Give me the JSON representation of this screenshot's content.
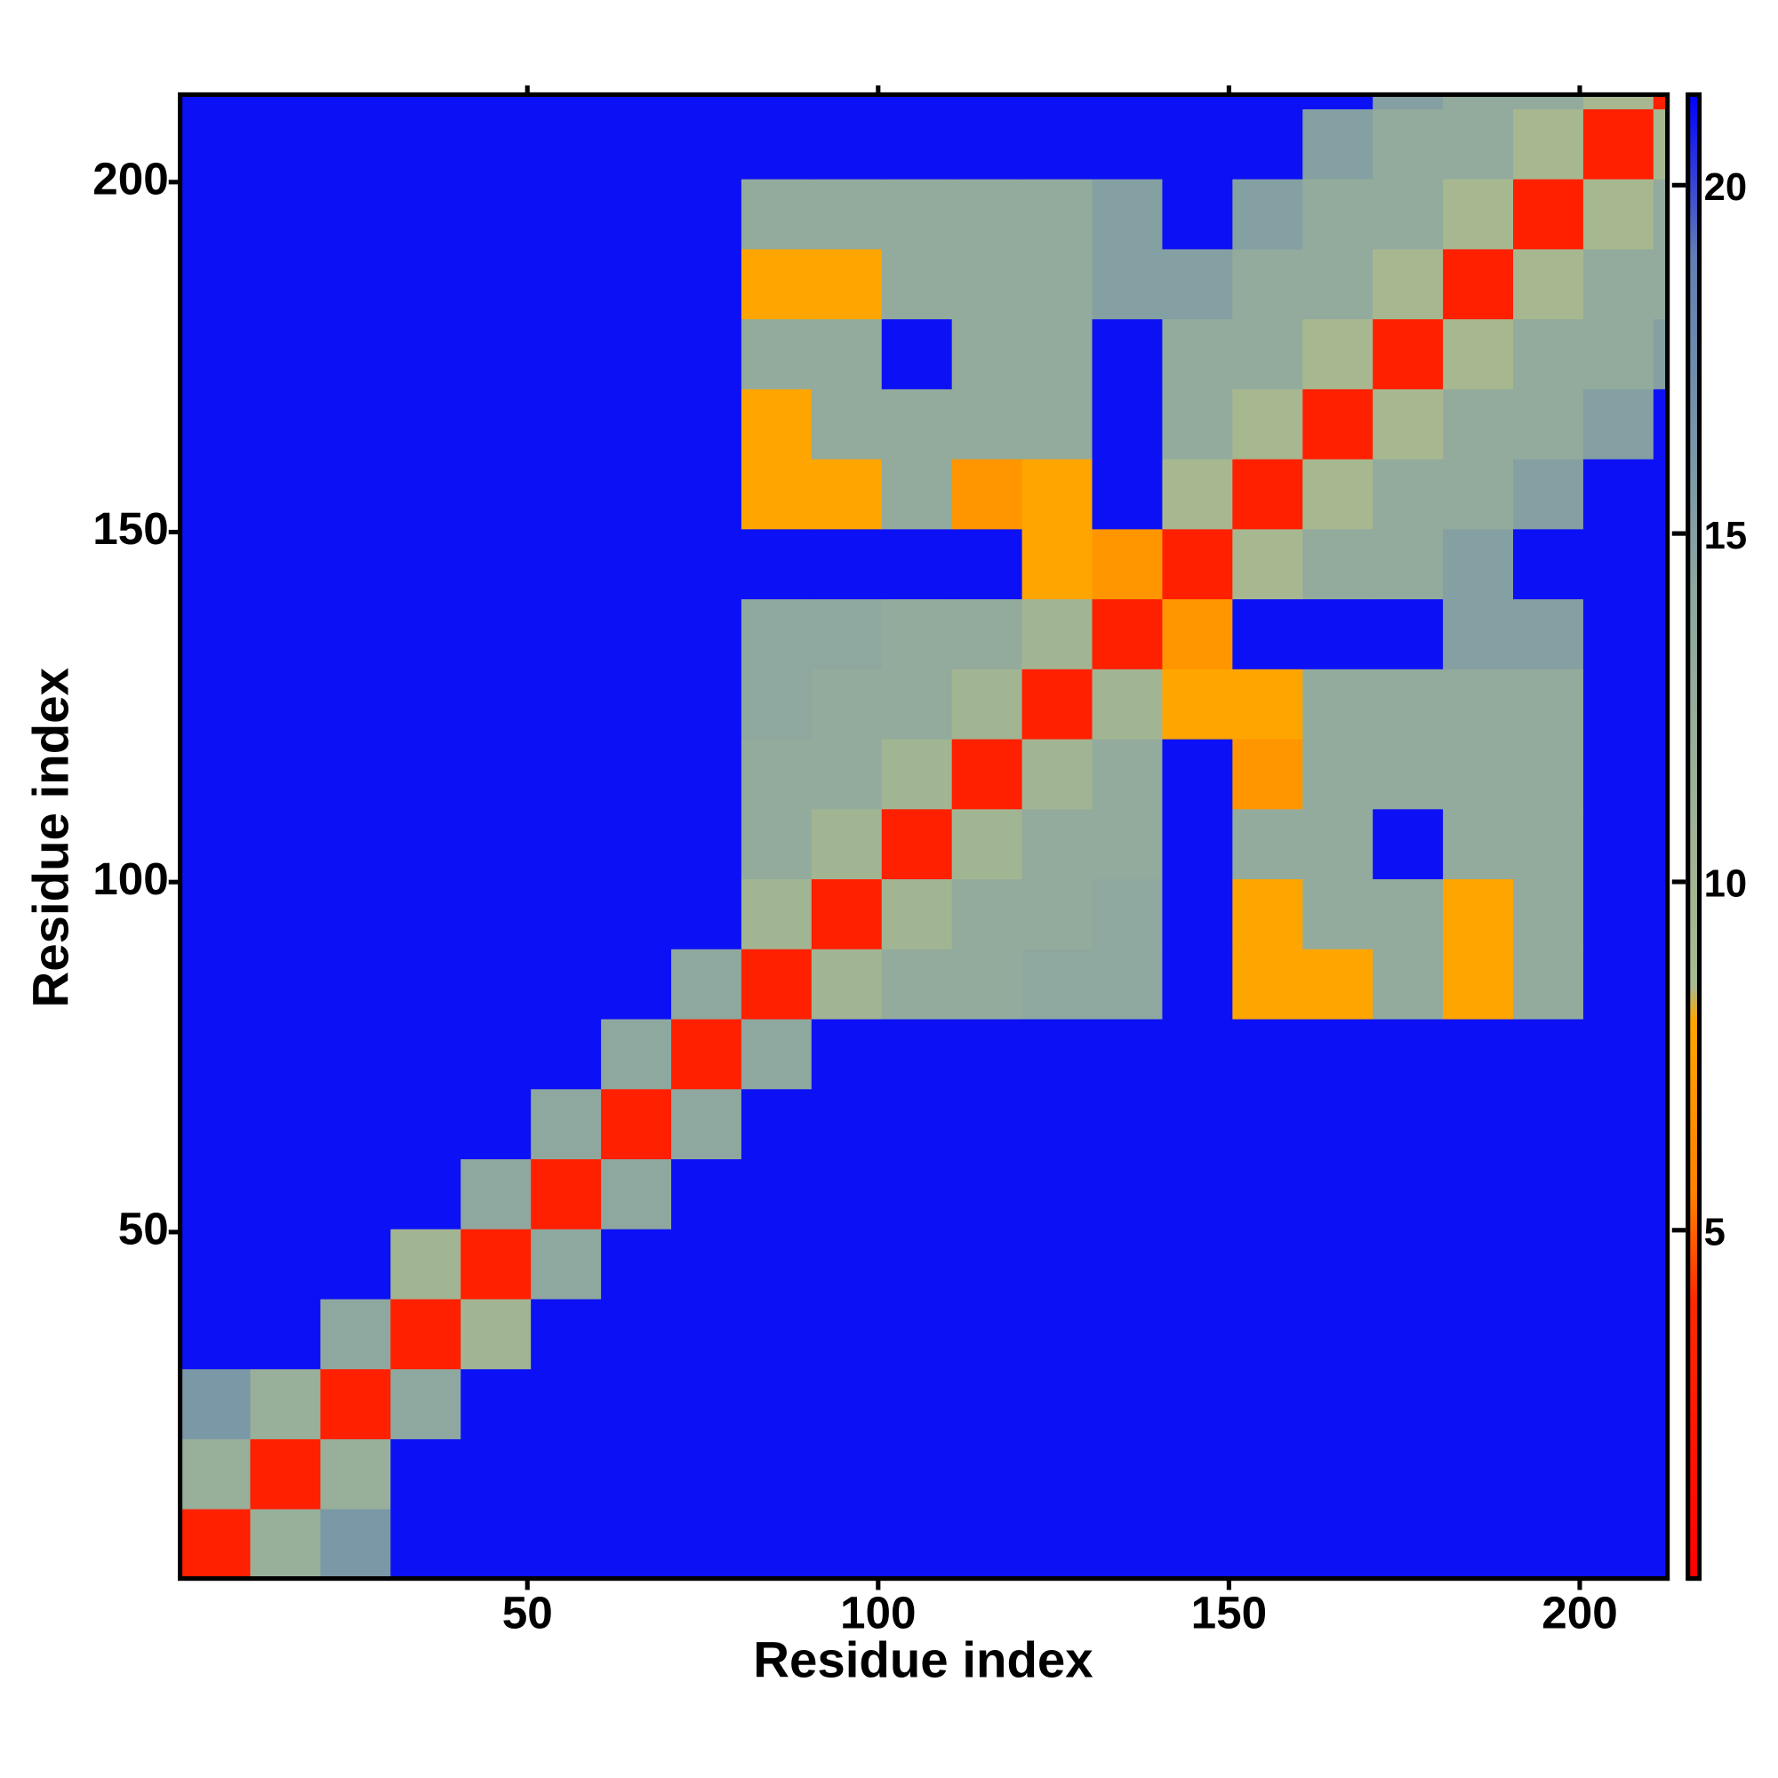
{
  "chart_data": {
    "type": "heatmap",
    "xlabel": "Residue index",
    "ylabel": "Residue index",
    "x_edges": [
      0.5,
      10.5,
      20.5,
      30.5,
      40.5,
      50.5,
      60.5,
      70.5,
      80.5,
      90.5,
      100.5,
      110.5,
      120.5,
      130.5,
      140.5,
      150.5,
      160.5,
      170.5,
      180.5,
      190.5,
      200.5,
      210.5,
      212.5
    ],
    "y_edges": [
      0.5,
      10.5,
      20.5,
      30.5,
      40.5,
      50.5,
      60.5,
      70.5,
      80.5,
      90.5,
      100.5,
      110.5,
      120.5,
      130.5,
      140.5,
      150.5,
      160.5,
      170.5,
      180.5,
      190.5,
      200.5,
      210.5,
      212.5
    ],
    "z": [
      [
        3,
        12,
        16,
        21,
        21,
        21,
        21,
        21,
        21,
        21,
        21,
        21,
        21,
        21,
        21,
        21,
        21,
        21,
        21,
        21,
        21,
        21
      ],
      [
        12,
        3,
        12,
        21,
        21,
        21,
        21,
        21,
        21,
        21,
        21,
        21,
        21,
        21,
        21,
        21,
        21,
        21,
        21,
        21,
        21,
        21
      ],
      [
        16,
        12,
        3,
        14,
        21,
        21,
        21,
        21,
        21,
        21,
        21,
        21,
        21,
        21,
        21,
        21,
        21,
        21,
        21,
        21,
        21,
        21
      ],
      [
        21,
        21,
        14,
        3,
        10,
        21,
        21,
        21,
        21,
        21,
        21,
        21,
        21,
        21,
        21,
        21,
        21,
        21,
        21,
        21,
        21,
        21
      ],
      [
        21,
        21,
        21,
        10,
        3,
        14,
        21,
        21,
        21,
        21,
        21,
        21,
        21,
        21,
        21,
        21,
        21,
        21,
        21,
        21,
        21,
        21
      ],
      [
        21,
        21,
        21,
        21,
        14,
        3,
        14,
        21,
        21,
        21,
        21,
        21,
        21,
        21,
        21,
        21,
        21,
        21,
        21,
        21,
        21,
        21
      ],
      [
        21,
        21,
        21,
        21,
        21,
        14,
        3,
        14,
        21,
        21,
        21,
        21,
        21,
        21,
        21,
        21,
        21,
        21,
        21,
        21,
        21,
        21
      ],
      [
        21,
        21,
        21,
        21,
        21,
        21,
        14,
        3,
        14,
        21,
        21,
        21,
        21,
        21,
        21,
        21,
        21,
        21,
        21,
        21,
        21,
        21
      ],
      [
        21,
        21,
        21,
        21,
        21,
        21,
        21,
        14,
        3,
        10,
        13,
        13,
        14,
        14,
        21,
        8,
        8,
        13,
        8,
        13,
        21,
        21
      ],
      [
        21,
        21,
        21,
        21,
        21,
        21,
        21,
        21,
        10,
        3,
        10,
        13,
        13,
        14,
        21,
        8,
        13,
        13,
        8,
        13,
        21,
        21
      ],
      [
        21,
        21,
        21,
        21,
        21,
        21,
        21,
        21,
        13,
        10,
        3,
        10,
        13,
        13,
        21,
        13,
        13,
        21,
        13,
        13,
        21,
        21
      ],
      [
        21,
        21,
        21,
        21,
        21,
        21,
        21,
        21,
        13,
        13,
        10,
        3,
        10,
        13,
        21,
        7,
        13,
        13,
        13,
        13,
        21,
        21
      ],
      [
        21,
        21,
        21,
        21,
        21,
        21,
        21,
        21,
        14,
        13,
        13,
        10,
        3,
        10,
        8,
        8,
        13,
        13,
        13,
        13,
        21,
        21
      ],
      [
        21,
        21,
        21,
        21,
        21,
        21,
        21,
        21,
        14,
        14,
        13,
        13,
        10,
        3,
        7,
        21,
        21,
        21,
        15,
        15,
        21,
        21
      ],
      [
        21,
        21,
        21,
        21,
        21,
        21,
        21,
        21,
        21,
        21,
        21,
        21,
        8,
        7,
        3,
        9,
        13,
        13,
        15,
        21,
        21,
        21
      ],
      [
        21,
        21,
        21,
        21,
        21,
        21,
        21,
        21,
        8,
        8,
        13,
        7,
        8,
        21,
        9,
        3,
        9,
        13,
        13,
        15,
        21,
        21
      ],
      [
        21,
        21,
        21,
        21,
        21,
        21,
        21,
        21,
        8,
        13,
        13,
        13,
        13,
        21,
        13,
        9,
        3,
        9,
        13,
        13,
        15,
        21
      ],
      [
        21,
        21,
        21,
        21,
        21,
        21,
        21,
        21,
        13,
        13,
        21,
        13,
        13,
        21,
        13,
        13,
        9,
        3,
        9,
        13,
        13,
        15
      ],
      [
        21,
        21,
        21,
        21,
        21,
        21,
        21,
        21,
        8,
        8,
        13,
        13,
        13,
        15,
        15,
        13,
        13,
        9,
        3,
        9,
        13,
        13
      ],
      [
        21,
        21,
        21,
        21,
        21,
        21,
        21,
        21,
        13,
        13,
        13,
        13,
        13,
        15,
        21,
        15,
        13,
        13,
        9,
        3,
        9,
        13
      ],
      [
        21,
        21,
        21,
        21,
        21,
        21,
        21,
        21,
        21,
        21,
        21,
        21,
        21,
        21,
        21,
        21,
        15,
        13,
        13,
        9,
        3,
        9
      ],
      [
        21,
        21,
        21,
        21,
        21,
        21,
        21,
        21,
        21,
        21,
        21,
        21,
        21,
        21,
        21,
        21,
        21,
        15,
        13,
        13,
        9,
        3
      ]
    ],
    "xlim": [
      0.5,
      212.5
    ],
    "ylim": [
      0.5,
      212.5
    ],
    "xticks": [
      50,
      100,
      150,
      200
    ],
    "yticks": [
      50,
      100,
      150,
      200
    ],
    "zlim": [
      0,
      21.3
    ],
    "zticks": [
      5,
      10,
      15,
      20
    ],
    "colorscale": [
      [
        0,
        "#ff0000"
      ],
      [
        4,
        "#ff2a00"
      ],
      [
        5.5,
        "#ff8000"
      ],
      [
        8,
        "#ffa500"
      ],
      [
        8.5,
        "#a9ba8e"
      ],
      [
        14,
        "#8ea89f"
      ],
      [
        19,
        "#5f7fb4"
      ],
      [
        21.3,
        "#0000ff"
      ]
    ]
  }
}
